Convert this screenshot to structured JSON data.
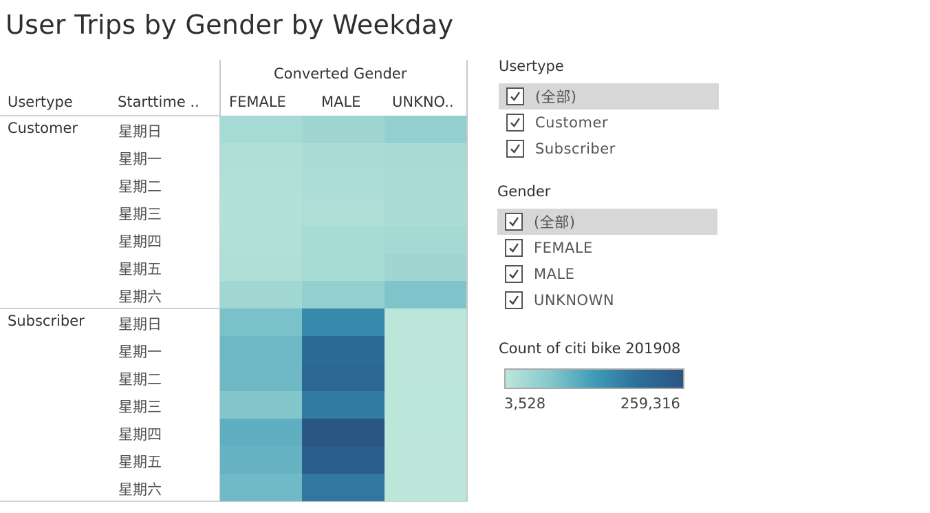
{
  "title": "User Trips by Gender by Weekday",
  "headers": {
    "usertype": "Usertype",
    "starttime": "Starttime ..",
    "converted_gender": "Converted Gender"
  },
  "filters": {
    "usertype": {
      "title": "Usertype",
      "items": [
        {
          "label": "(全部)",
          "checked": true
        },
        {
          "label": "Customer",
          "checked": true
        },
        {
          "label": "Subscriber",
          "checked": true
        }
      ]
    },
    "gender": {
      "title": "Gender",
      "items": [
        {
          "label": "(全部)",
          "checked": true
        },
        {
          "label": "FEMALE",
          "checked": true
        },
        {
          "label": "MALE",
          "checked": true
        },
        {
          "label": "UNKNOWN",
          "checked": true
        }
      ]
    }
  },
  "legend": {
    "title": "Count of citi bike 201908",
    "min_label": "3,528",
    "max_label": "259,316",
    "min_color": "#bce6da",
    "max_color": "#2b5582"
  },
  "chart_data": {
    "type": "heatmap",
    "title": "User Trips by Gender by Weekday",
    "column_header": "Converted Gender",
    "columns": [
      "FEMALE",
      "MALE",
      "UNKNO.."
    ],
    "row_groups": [
      {
        "usertype": "Customer",
        "rows": [
          "星期日",
          "星期一",
          "星期二",
          "星期三",
          "星期四",
          "星期五",
          "星期六"
        ],
        "values": [
          [
            30000,
            38000,
            52000
          ],
          [
            18000,
            24000,
            26000
          ],
          [
            16000,
            22000,
            25000
          ],
          [
            14000,
            20000,
            24000
          ],
          [
            17000,
            28000,
            32000
          ],
          [
            19000,
            30000,
            38000
          ],
          [
            36000,
            52000,
            75000
          ]
        ]
      },
      {
        "usertype": "Subscriber",
        "rows": [
          "星期日",
          "星期一",
          "星期二",
          "星期三",
          "星期四",
          "星期五",
          "星期六"
        ],
        "values": [
          [
            80000,
            170000,
            4000
          ],
          [
            95000,
            215000,
            3800
          ],
          [
            93000,
            220000,
            3700
          ],
          [
            72000,
            190000,
            4200
          ],
          [
            110000,
            259316,
            3600
          ],
          [
            102000,
            240000,
            3528
          ],
          [
            92000,
            195000,
            3900
          ]
        ]
      }
    ],
    "min": 3528,
    "max": 259316
  }
}
